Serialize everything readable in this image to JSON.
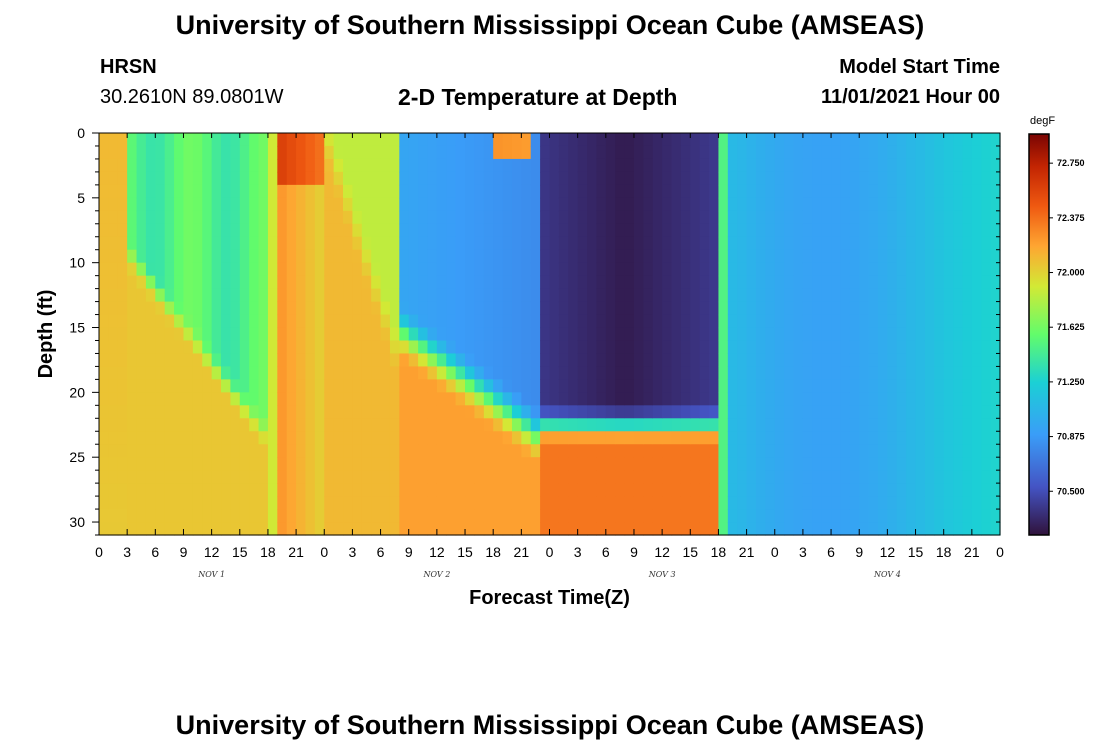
{
  "header": {
    "title": "University of Southern Mississippi Ocean Cube (AMSEAS)",
    "station": "HRSN",
    "coords": "30.2610N  89.0801W",
    "plot_title": "2-D Temperature at Depth",
    "model_label": "Model Start Time",
    "model_start": "11/01/2021 Hour 00"
  },
  "footer": {
    "title": "University of Southern Mississippi Ocean Cube (AMSEAS)"
  },
  "chart_data": {
    "type": "heatmap",
    "title": "2-D Temperature at Depth",
    "xlabel": "Forecast Time(Z)",
    "ylabel": "Depth (ft)",
    "x_tick_labels": [
      "0",
      "3",
      "6",
      "9",
      "12",
      "15",
      "18",
      "21",
      "0",
      "3",
      "6",
      "9",
      "12",
      "15",
      "18",
      "21",
      "0",
      "3",
      "6",
      "9",
      "12",
      "15",
      "18",
      "21",
      "0",
      "3",
      "6",
      "9",
      "12",
      "15",
      "18",
      "21",
      "0"
    ],
    "day_labels": [
      "NOV 1",
      "NOV 2",
      "NOV 3",
      "NOV 4"
    ],
    "xlim_hours": [
      0,
      96
    ],
    "y_ticks": [
      0,
      5,
      10,
      15,
      20,
      25,
      30
    ],
    "ylim": [
      0,
      31
    ],
    "y_inverted": true,
    "colorbar": {
      "unit": "degF",
      "ticks": [
        "72.750",
        "72.375",
        "72.000",
        "71.625",
        "71.250",
        "70.875",
        "70.500"
      ],
      "range": [
        70.2,
        72.95
      ]
    }
  }
}
